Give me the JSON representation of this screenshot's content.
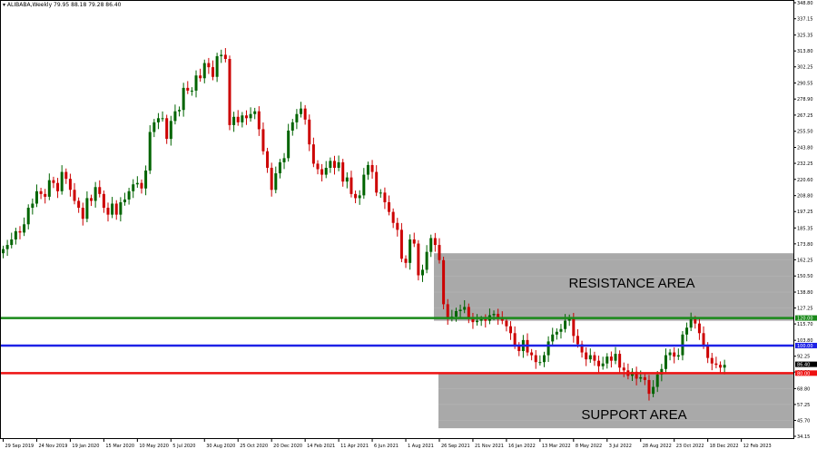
{
  "chart_data": {
    "type": "candlestick",
    "title": "▾ ALIBABA,Weekly 79.95 88.18 79.28 86.40",
    "ylim": [
      34.15,
      348.8
    ],
    "y_ticks": [
      "348.80",
      "337.15",
      "325.35",
      "313.80",
      "302.25",
      "290.55",
      "278.90",
      "267.25",
      "255.50",
      "243.80",
      "232.25",
      "220.60",
      "208.80",
      "197.25",
      "185.35",
      "173.80",
      "162.25",
      "150.50",
      "138.80",
      "127.25",
      "115.70",
      "103.80",
      "92.25",
      "80.80",
      "68.80",
      "57.25",
      "45.70",
      "34.15"
    ],
    "x_ticks": [
      "29 Sep 2019",
      "24 Nov 2019",
      "19 Jan 2020",
      "15 Mar 2020",
      "10 May 2020",
      "5 Jul 2020",
      "30 Aug 2020",
      "25 Oct 2020",
      "20 Dec 2020",
      "14 Feb 2021",
      "11 Apr 2021",
      "6 Jun 2021",
      "1 Aug 2021",
      "26 Sep 2021",
      "21 Nov 2021",
      "16 Jan 2022",
      "13 Mar 2022",
      "8 May 2022",
      "3 Jul 2022",
      "28 Aug 2022",
      "23 Oct 2022",
      "18 Dec 2022",
      "12 Feb 2023"
    ],
    "x_start_date": "2019-09-29",
    "closes": [
      170,
      173,
      177,
      183,
      182,
      188,
      200,
      203,
      212,
      210,
      208,
      220,
      218,
      212,
      226,
      221,
      213,
      205,
      200,
      192,
      207,
      205,
      215,
      210,
      200,
      195,
      203,
      195,
      204,
      206,
      212,
      217,
      218,
      214,
      227,
      255,
      262,
      265,
      265,
      250,
      263,
      270,
      271,
      287,
      285,
      285,
      296,
      294,
      305,
      302,
      295,
      310,
      311,
      308,
      260,
      266,
      262,
      267,
      265,
      268,
      270,
      257,
      241,
      229,
      213,
      225,
      233,
      236,
      256,
      262,
      268,
      272,
      264,
      246,
      232,
      228,
      224,
      229,
      234,
      229,
      233,
      219,
      222,
      210,
      207,
      209,
      224,
      231,
      226,
      211,
      211,
      204,
      197,
      189,
      184,
      163,
      160,
      177,
      174,
      151,
      155,
      168,
      178,
      173,
      162,
      130,
      120,
      121,
      125,
      126,
      128,
      120,
      117,
      118,
      119,
      118,
      122,
      123,
      120,
      118,
      114,
      109,
      100,
      96,
      104,
      95,
      93,
      88,
      88,
      93,
      103,
      108,
      110,
      112,
      118,
      120,
      107,
      101,
      95,
      90,
      93,
      89,
      85,
      87,
      92,
      89,
      94,
      84,
      82,
      78,
      81,
      76,
      77,
      75,
      65,
      70,
      79,
      83,
      93,
      95,
      92,
      93,
      108,
      113,
      119,
      116,
      109,
      100,
      91,
      87,
      86,
      84,
      86
    ],
    "up_color": "#006400",
    "down_color": "#cc0000",
    "zones": [
      {
        "label": "RESISTANCE AREA",
        "low": 118.0,
        "high": 167.0,
        "color": "#a9a9a9"
      },
      {
        "label": "SUPPORT AREA",
        "low": 40.0,
        "high": 80.0,
        "color": "#a9a9a9"
      }
    ],
    "levels": [
      {
        "value": 120.0,
        "label": "120.00",
        "color": "#1a8a1a"
      },
      {
        "value": 100.0,
        "label": "100.00",
        "color": "#1e22e6"
      },
      {
        "value": 80.0,
        "label": "80.00",
        "color": "#ee1111"
      }
    ],
    "current_price": {
      "value": 86.4,
      "label": "86.40",
      "color": "#000000"
    }
  }
}
